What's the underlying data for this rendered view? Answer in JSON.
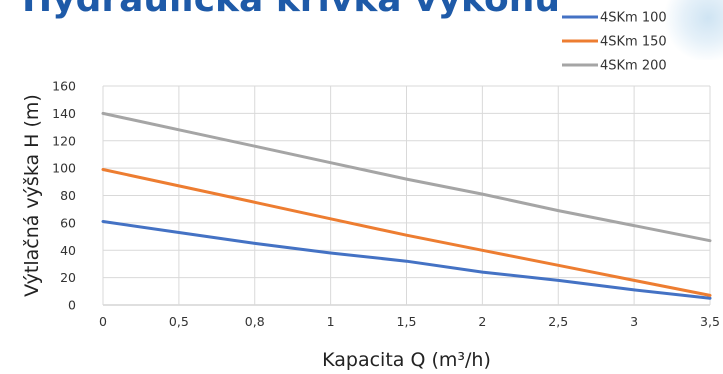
{
  "chart_data": {
    "type": "line",
    "title": "Hydraulická krivka výkonu",
    "xlabel": "Kapacita Q (m³/h)",
    "ylabel": "Výtlačná výška H (m)",
    "categories": [
      "0",
      "0,5",
      "0,8",
      "1",
      "1,5",
      "2",
      "2,5",
      "3",
      "3,5"
    ],
    "ylim": [
      0,
      160
    ],
    "yticks": [
      0,
      20,
      40,
      60,
      80,
      100,
      120,
      140,
      160
    ],
    "grid": true,
    "legend_position": "top-right",
    "series": [
      {
        "name": "4SKm 100",
        "color": "#4472c4",
        "values": [
          61,
          53,
          45,
          38,
          32,
          24,
          18,
          11,
          5
        ]
      },
      {
        "name": "4SKm 150",
        "color": "#ed7d31",
        "values": [
          99,
          87,
          75,
          63,
          51,
          40,
          29,
          18,
          7
        ]
      },
      {
        "name": "4SKm 200",
        "color": "#a5a5a5",
        "values": [
          140,
          128,
          116,
          104,
          92,
          81,
          69,
          58,
          47
        ]
      }
    ]
  }
}
